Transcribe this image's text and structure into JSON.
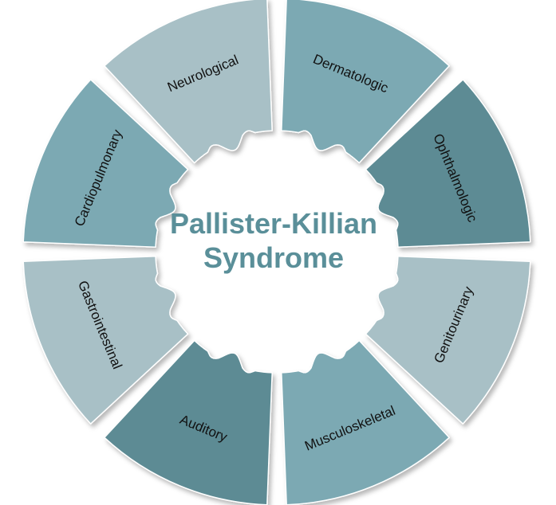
{
  "title": {
    "line1": "Pallister-Killian",
    "line2": "Syndrome",
    "color": "#5a8f99"
  },
  "colors": {
    "light": "#a8c0c6",
    "medium": "#7ba9b3",
    "dark": "#5d8b94"
  },
  "segments": [
    {
      "label": "Dermatologic",
      "shade": "medium"
    },
    {
      "label": "Ophthalmologic",
      "shade": "dark"
    },
    {
      "label": "Genitourinary",
      "shade": "light"
    },
    {
      "label": "Musculoskeletal",
      "shade": "medium"
    },
    {
      "label": "Auditory",
      "shade": "dark"
    },
    {
      "label": "Gastrointestinal",
      "shade": "light"
    },
    {
      "label": "Cardiopulmonary",
      "shade": "medium"
    },
    {
      "label": "Neurological",
      "shade": "light"
    }
  ]
}
